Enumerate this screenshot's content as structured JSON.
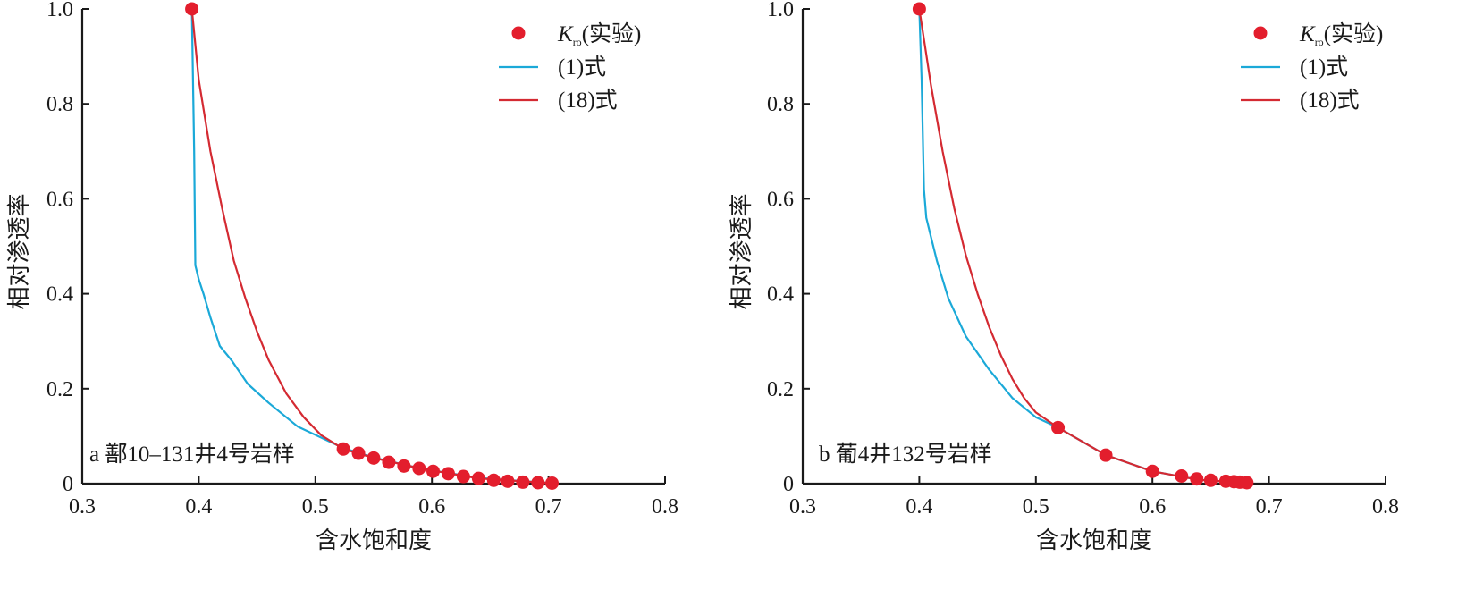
{
  "chart_data": [
    {
      "type": "line",
      "title": "",
      "panel_label": "a 鄯10–131井4号岩样",
      "xlabel": "含水饱和度",
      "ylabel": "相对渗透率",
      "xlim": [
        0.3,
        0.8
      ],
      "ylim": [
        0,
        1.0
      ],
      "x_ticks": [
        0.3,
        0.4,
        0.5,
        0.6,
        0.7,
        0.8
      ],
      "x_tick_labels": [
        "0.3",
        "0.4",
        "0.5",
        "0.6",
        "0.7",
        "0.8"
      ],
      "y_ticks": [
        0,
        0.2,
        0.4,
        0.6,
        0.8,
        1.0
      ],
      "y_tick_labels": [
        "0",
        "0.2",
        "0.4",
        "0.6",
        "0.8",
        "1.0"
      ],
      "grid": false,
      "legend_position": "top-right",
      "legend": [
        {
          "label_main": "K",
          "label_sub": "ro",
          "label_rest": "(实验)",
          "kind": "marker"
        },
        {
          "label": "(1)式",
          "kind": "line"
        },
        {
          "label": "(18)式",
          "kind": "line"
        }
      ],
      "series": [
        {
          "name": "Kro(实验)",
          "kind": "scatter",
          "color": "#e31e2d",
          "x": [
            0.394,
            0.524,
            0.537,
            0.55,
            0.563,
            0.576,
            0.589,
            0.601,
            0.614,
            0.627,
            0.64,
            0.653,
            0.665,
            0.678,
            0.691,
            0.703
          ],
          "y": [
            1.0,
            0.073,
            0.064,
            0.054,
            0.045,
            0.037,
            0.032,
            0.026,
            0.021,
            0.015,
            0.011,
            0.007,
            0.005,
            0.003,
            0.002,
            0.001
          ]
        },
        {
          "name": "(1)式",
          "kind": "line",
          "color": "#1ba9d8",
          "x": [
            0.394,
            0.396,
            0.397,
            0.4,
            0.404,
            0.41,
            0.418,
            0.428,
            0.442,
            0.46,
            0.485,
            0.524,
            0.55,
            0.59,
            0.64,
            0.703
          ],
          "y": [
            1.0,
            0.7,
            0.46,
            0.43,
            0.4,
            0.35,
            0.29,
            0.26,
            0.21,
            0.17,
            0.12,
            0.075,
            0.055,
            0.032,
            0.012,
            0.001
          ]
        },
        {
          "name": "(18)式",
          "kind": "line",
          "color": "#d42a32",
          "x": [
            0.394,
            0.4,
            0.41,
            0.42,
            0.43,
            0.44,
            0.45,
            0.46,
            0.475,
            0.49,
            0.505,
            0.524,
            0.55,
            0.59,
            0.64,
            0.703
          ],
          "y": [
            1.0,
            0.85,
            0.7,
            0.58,
            0.47,
            0.39,
            0.32,
            0.26,
            0.19,
            0.14,
            0.102,
            0.073,
            0.054,
            0.032,
            0.011,
            0.001
          ]
        }
      ]
    },
    {
      "type": "line",
      "title": "",
      "panel_label": "b 葡4井132号岩样",
      "xlabel": "含水饱和度",
      "ylabel": "相对渗透率",
      "xlim": [
        0.3,
        0.8
      ],
      "ylim": [
        0,
        1.0
      ],
      "x_ticks": [
        0.3,
        0.4,
        0.5,
        0.6,
        0.7,
        0.8
      ],
      "x_tick_labels": [
        "0.3",
        "0.4",
        "0.5",
        "0.6",
        "0.7",
        "0.8"
      ],
      "y_ticks": [
        0,
        0.2,
        0.4,
        0.6,
        0.8,
        1.0
      ],
      "y_tick_labels": [
        "0",
        "0.2",
        "0.4",
        "0.6",
        "0.8",
        "1.0"
      ],
      "grid": false,
      "legend_position": "top-right",
      "legend": [
        {
          "label_main": "K",
          "label_sub": "ro",
          "label_rest": "(实验)",
          "kind": "marker"
        },
        {
          "label": "(1)式",
          "kind": "line"
        },
        {
          "label": "(18)式",
          "kind": "line"
        }
      ],
      "series": [
        {
          "name": "Kro(实验)",
          "kind": "scatter",
          "color": "#e31e2d",
          "x": [
            0.4,
            0.519,
            0.56,
            0.6,
            0.625,
            0.638,
            0.65,
            0.663,
            0.67,
            0.675,
            0.681
          ],
          "y": [
            1.0,
            0.118,
            0.06,
            0.026,
            0.016,
            0.01,
            0.007,
            0.005,
            0.004,
            0.003,
            0.002
          ]
        },
        {
          "name": "(1)式",
          "kind": "line",
          "color": "#1ba9d8",
          "x": [
            0.4,
            0.402,
            0.404,
            0.406,
            0.41,
            0.415,
            0.425,
            0.44,
            0.46,
            0.48,
            0.5,
            0.519,
            0.56,
            0.6,
            0.64,
            0.681
          ],
          "y": [
            1.0,
            0.85,
            0.62,
            0.56,
            0.52,
            0.47,
            0.39,
            0.31,
            0.24,
            0.18,
            0.14,
            0.118,
            0.06,
            0.026,
            0.008,
            0.002
          ]
        },
        {
          "name": "(18)式",
          "kind": "line",
          "color": "#d42a32",
          "x": [
            0.4,
            0.41,
            0.42,
            0.43,
            0.44,
            0.45,
            0.46,
            0.47,
            0.48,
            0.49,
            0.5,
            0.519,
            0.56,
            0.6,
            0.64,
            0.681
          ],
          "y": [
            1.0,
            0.84,
            0.7,
            0.58,
            0.48,
            0.4,
            0.33,
            0.27,
            0.22,
            0.18,
            0.15,
            0.118,
            0.06,
            0.026,
            0.008,
            0.002
          ]
        }
      ]
    }
  ]
}
